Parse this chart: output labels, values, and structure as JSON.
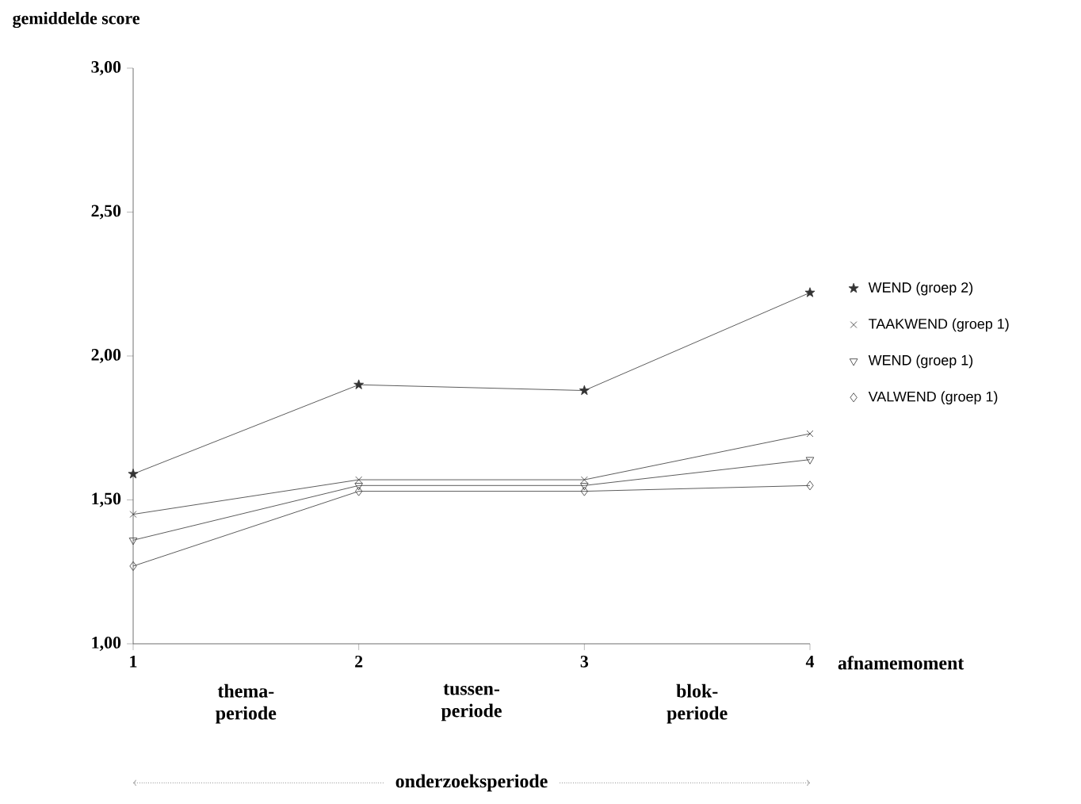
{
  "chart_data": {
    "type": "line",
    "ylabel": "gemiddelde score",
    "xlabel": "afnamemoment",
    "x": [
      1,
      2,
      3,
      4
    ],
    "xlim": [
      1,
      4
    ],
    "xticks": [
      1,
      2,
      3,
      4
    ],
    "ylim": [
      1,
      3
    ],
    "yticks": [
      {
        "value": 1,
        "label": "1,00"
      },
      {
        "value": 1.5,
        "label": "1,50"
      },
      {
        "value": 2,
        "label": "2,00"
      },
      {
        "value": 2.5,
        "label": "2,50"
      },
      {
        "value": 3,
        "label": "3,00"
      }
    ],
    "series": [
      {
        "name": "WEND (groep 2)",
        "color": "#333333",
        "marker": "star",
        "values": [
          1.59,
          1.9,
          1.88,
          2.22
        ]
      },
      {
        "name": "TAAKWEND (groep 1)",
        "color": "#333333",
        "marker": "cross",
        "values": [
          1.45,
          1.57,
          1.57,
          1.73
        ]
      },
      {
        "name": "WEND (groep 1)",
        "color": "#333333",
        "marker": "triangle",
        "values": [
          1.36,
          1.55,
          1.55,
          1.64
        ]
      },
      {
        "name": "VALWEND (groep 1)",
        "color": "#333333",
        "marker": "diamond",
        "values": [
          1.27,
          1.53,
          1.53,
          1.55
        ]
      }
    ],
    "annotations": [
      "thema-periode",
      "tussen-periode",
      "blok-periode",
      "onderzoeksperiode"
    ],
    "legend": "right",
    "grid": false,
    "line_style": "solid"
  }
}
